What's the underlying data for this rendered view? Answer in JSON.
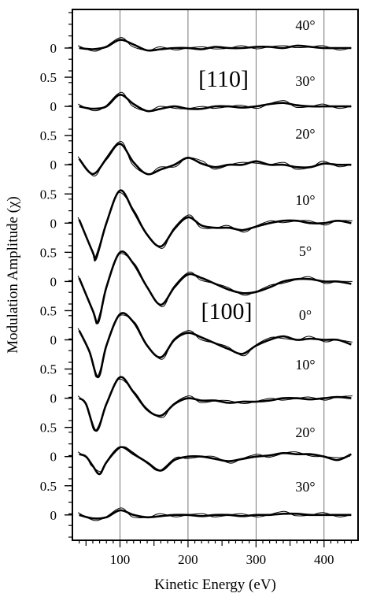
{
  "chart_data": {
    "type": "line",
    "title": "",
    "xlabel": "Kinetic Energy (eV)",
    "ylabel": "Modulation Amplitude (χ)",
    "xlim": [
      30,
      450
    ],
    "x_ticks": [
      "100",
      "200",
      "300",
      "400"
    ],
    "y_tick_zero": "0",
    "y_tick_half": "0.5",
    "y_offset_step": 0.5,
    "grid": "vertical lines at 100, 200, 300, 400",
    "direction_labels": [
      "[110]",
      "[100]"
    ],
    "series": [
      {
        "name": "40°",
        "x": [
          40,
          60,
          80,
          100,
          120,
          140,
          160,
          180,
          200,
          220,
          240,
          260,
          280,
          300,
          320,
          340,
          360,
          380,
          400,
          420,
          440
        ],
        "y": [
          0.0,
          -0.01,
          0.01,
          0.07,
          0.03,
          -0.02,
          -0.01,
          0.0,
          0.0,
          -0.01,
          0.01,
          0.0,
          0.0,
          0.01,
          0.01,
          0.0,
          0.02,
          0.01,
          0.0,
          0.0,
          0.0
        ]
      },
      {
        "name": "30°",
        "x": [
          40,
          60,
          80,
          100,
          120,
          140,
          160,
          180,
          200,
          220,
          240,
          260,
          280,
          300,
          320,
          340,
          360,
          380,
          400,
          420,
          440
        ],
        "y": [
          0.0,
          -0.02,
          0.0,
          0.1,
          0.02,
          -0.04,
          -0.02,
          0.0,
          -0.02,
          -0.02,
          0.0,
          0.0,
          -0.01,
          0.0,
          0.02,
          0.03,
          0.01,
          0.0,
          0.0,
          0.0,
          0.0
        ]
      },
      {
        "name": "20°",
        "x": [
          40,
          60,
          80,
          100,
          120,
          140,
          160,
          180,
          200,
          220,
          240,
          260,
          280,
          300,
          320,
          340,
          360,
          380,
          400,
          420,
          440
        ],
        "y": [
          0.05,
          -0.08,
          0.05,
          0.18,
          0.02,
          -0.08,
          -0.04,
          0.0,
          0.06,
          0.01,
          -0.02,
          0.0,
          0.0,
          0.03,
          0.0,
          0.0,
          -0.02,
          -0.02,
          0.01,
          0.0,
          0.0
        ]
      },
      {
        "name": "10°",
        "x": [
          40,
          60,
          65,
          80,
          100,
          120,
          140,
          160,
          180,
          200,
          220,
          240,
          260,
          280,
          300,
          320,
          340,
          360,
          380,
          400,
          420,
          440
        ],
        "y": [
          0.03,
          -0.25,
          -0.3,
          0.0,
          0.28,
          0.1,
          -0.1,
          -0.2,
          -0.05,
          0.05,
          -0.02,
          -0.04,
          -0.04,
          -0.06,
          -0.03,
          0.0,
          0.02,
          0.02,
          0.0,
          0.0,
          0.02,
          0.0
        ]
      },
      {
        "name": "5°",
        "x": [
          40,
          60,
          68,
          80,
          100,
          120,
          140,
          160,
          180,
          200,
          220,
          240,
          260,
          280,
          300,
          320,
          340,
          360,
          380,
          400,
          420,
          440
        ],
        "y": [
          0.03,
          -0.25,
          -0.35,
          -0.05,
          0.25,
          0.15,
          -0.05,
          -0.2,
          -0.05,
          0.06,
          0.03,
          -0.02,
          -0.07,
          -0.1,
          -0.09,
          -0.05,
          0.0,
          0.02,
          0.02,
          0.0,
          0.0,
          -0.02
        ]
      },
      {
        "name": "0°",
        "x": [
          40,
          55,
          68,
          80,
          100,
          120,
          140,
          160,
          180,
          200,
          220,
          240,
          260,
          280,
          300,
          320,
          340,
          360,
          380,
          400,
          420,
          440
        ],
        "y": [
          0.08,
          -0.1,
          -0.32,
          -0.05,
          0.22,
          0.15,
          -0.05,
          -0.15,
          0.0,
          0.06,
          0.02,
          -0.03,
          -0.08,
          -0.12,
          -0.05,
          0.0,
          0.03,
          0.0,
          0.01,
          0.0,
          0.0,
          -0.04
        ]
      },
      {
        "name": "10°",
        "x": [
          40,
          50,
          65,
          80,
          100,
          120,
          140,
          160,
          180,
          200,
          220,
          240,
          260,
          280,
          300,
          320,
          340,
          360,
          380,
          400,
          420,
          440
        ],
        "y": [
          0.0,
          -0.05,
          -0.28,
          -0.05,
          0.18,
          0.05,
          -0.1,
          -0.15,
          -0.05,
          0.0,
          -0.02,
          -0.02,
          -0.04,
          -0.03,
          -0.03,
          -0.02,
          0.0,
          0.0,
          -0.01,
          0.0,
          0.01,
          0.0
        ]
      },
      {
        "name": "20°",
        "x": [
          40,
          50,
          60,
          70,
          80,
          100,
          120,
          140,
          160,
          180,
          200,
          220,
          240,
          260,
          280,
          300,
          320,
          340,
          360,
          380,
          400,
          420,
          440
        ],
        "y": [
          0.02,
          0.0,
          -0.08,
          -0.15,
          -0.05,
          0.08,
          0.02,
          -0.05,
          -0.12,
          -0.03,
          0.0,
          0.0,
          -0.02,
          -0.04,
          -0.02,
          0.0,
          0.01,
          0.03,
          0.02,
          0.02,
          0.0,
          -0.03,
          0.02
        ]
      },
      {
        "name": "30°",
        "x": [
          40,
          60,
          80,
          100,
          120,
          140,
          160,
          180,
          200,
          220,
          240,
          260,
          280,
          300,
          320,
          340,
          360,
          380,
          400,
          420,
          440
        ],
        "y": [
          0.0,
          -0.03,
          -0.02,
          0.04,
          0.0,
          -0.02,
          -0.01,
          0.0,
          0.0,
          -0.01,
          0.0,
          0.0,
          -0.01,
          0.0,
          0.0,
          0.01,
          0.01,
          0.0,
          0.0,
          0.0,
          0.0
        ]
      }
    ]
  }
}
